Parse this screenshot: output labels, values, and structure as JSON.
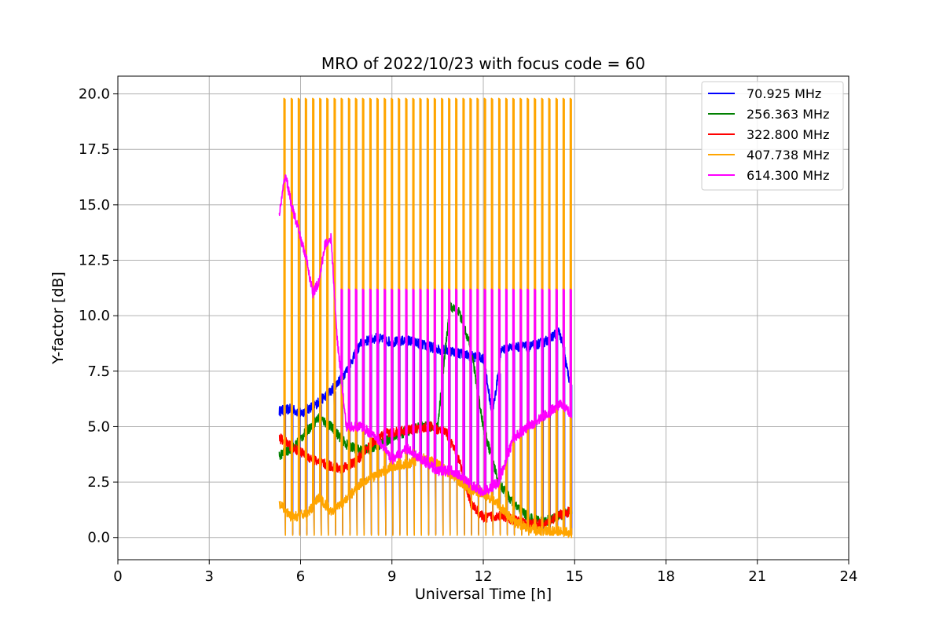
{
  "chart_data": {
    "type": "line",
    "title": "MRO of 2022/10/23 with focus code = 60",
    "xlabel": "Universal Time [h]",
    "ylabel": "Y-factor [dB]",
    "xlim": [
      0,
      24
    ],
    "ylim": [
      -1.0,
      20.8
    ],
    "x_ticks": [
      0,
      3,
      6,
      9,
      12,
      15,
      18,
      21,
      24
    ],
    "x_tick_labels": [
      "0",
      "3",
      "6",
      "9",
      "12",
      "15",
      "18",
      "21",
      "24"
    ],
    "y_ticks": [
      0,
      2.5,
      5,
      7.5,
      10,
      12.5,
      15,
      17.5,
      20
    ],
    "y_tick_labels": [
      "0.0",
      "2.5",
      "5.0",
      "7.5",
      "10.0",
      "12.5",
      "15.0",
      "17.5",
      "20.0"
    ],
    "grid": true,
    "legend_position": "top-right",
    "spike_period_h": 0.235,
    "series": [
      {
        "name": " 70.925 MHz",
        "color": "#0000ff",
        "spike_low": 0.15,
        "x": [
          5.3,
          5.7,
          6.0,
          6.5,
          7.0,
          7.5,
          8.0,
          8.5,
          9.0,
          9.5,
          10.0,
          10.5,
          11.0,
          11.5,
          12.0,
          12.3,
          12.6,
          13.0,
          13.5,
          14.0,
          14.5,
          14.9
        ],
        "y": [
          5.7,
          5.8,
          5.6,
          6.0,
          6.6,
          7.5,
          8.8,
          9.0,
          8.8,
          8.9,
          8.7,
          8.5,
          8.4,
          8.2,
          8.1,
          5.5,
          8.5,
          8.6,
          8.6,
          8.8,
          9.3,
          6.6
        ]
      },
      {
        "name": "256.363 MHz",
        "color": "#008000",
        "spike_low": null,
        "x": [
          5.3,
          5.8,
          6.2,
          6.6,
          7.0,
          7.5,
          8.0,
          8.5,
          9.0,
          9.5,
          10.0,
          10.5,
          10.9,
          11.2,
          11.6,
          12.0,
          12.5,
          13.0,
          13.5,
          14.0,
          14.5,
          14.9
        ],
        "y": [
          3.7,
          4.1,
          4.8,
          5.4,
          5.0,
          4.2,
          3.9,
          4.1,
          4.5,
          4.8,
          5.0,
          5.0,
          10.4,
          10.2,
          8.5,
          5.0,
          2.5,
          1.5,
          0.9,
          0.7,
          1.0,
          1.2
        ]
      },
      {
        "name": "322.800 MHz",
        "color": "#ff0000",
        "spike_low": null,
        "x": [
          5.3,
          5.8,
          6.3,
          6.8,
          7.3,
          7.8,
          8.3,
          8.8,
          9.3,
          9.8,
          10.3,
          10.8,
          11.2,
          11.6,
          12.0,
          12.5,
          13.0,
          13.5,
          14.0,
          14.5,
          14.9
        ],
        "y": [
          4.5,
          4.0,
          3.6,
          3.3,
          3.1,
          3.4,
          4.2,
          4.7,
          4.8,
          4.9,
          5.0,
          4.7,
          3.5,
          1.5,
          0.9,
          1.0,
          0.8,
          0.6,
          0.6,
          1.0,
          1.2
        ]
      },
      {
        "name": "407.738 MHz",
        "color": "#ffa500",
        "spike_high": 19.8,
        "spike_low": 0.1,
        "x": [
          5.3,
          5.7,
          6.0,
          6.3,
          6.6,
          7.0,
          7.3,
          7.7,
          8.0,
          8.5,
          9.0,
          9.5,
          10.0,
          10.5,
          11.0,
          11.5,
          12.0,
          12.5,
          13.0,
          13.5,
          14.0,
          14.5,
          14.9
        ],
        "y": [
          1.5,
          0.9,
          1.0,
          1.2,
          1.8,
          1.2,
          1.5,
          2.0,
          2.5,
          2.8,
          3.2,
          3.3,
          3.6,
          3.3,
          2.8,
          2.2,
          2.0,
          1.5,
          0.7,
          0.4,
          0.3,
          0.3,
          0.2
        ]
      },
      {
        "name": "614.300 MHz",
        "color": "#ff00ff",
        "spike_high": 11.2,
        "spike_start": 7.2,
        "spike_low": null,
        "x": [
          5.3,
          5.5,
          5.7,
          6.0,
          6.2,
          6.4,
          6.6,
          6.8,
          7.0,
          7.2,
          7.5,
          8.0,
          8.5,
          9.0,
          9.5,
          10.0,
          10.5,
          11.0,
          11.5,
          12.0,
          12.5,
          13.0,
          13.5,
          14.0,
          14.5,
          14.9
        ],
        "y": [
          14.5,
          16.4,
          15.0,
          13.5,
          12.5,
          11.0,
          11.5,
          13.2,
          13.5,
          9.0,
          5.0,
          5.0,
          4.5,
          3.5,
          4.0,
          3.5,
          3.0,
          3.0,
          2.5,
          2.0,
          2.5,
          4.5,
          5.0,
          5.5,
          6.0,
          5.6
        ]
      }
    ]
  }
}
